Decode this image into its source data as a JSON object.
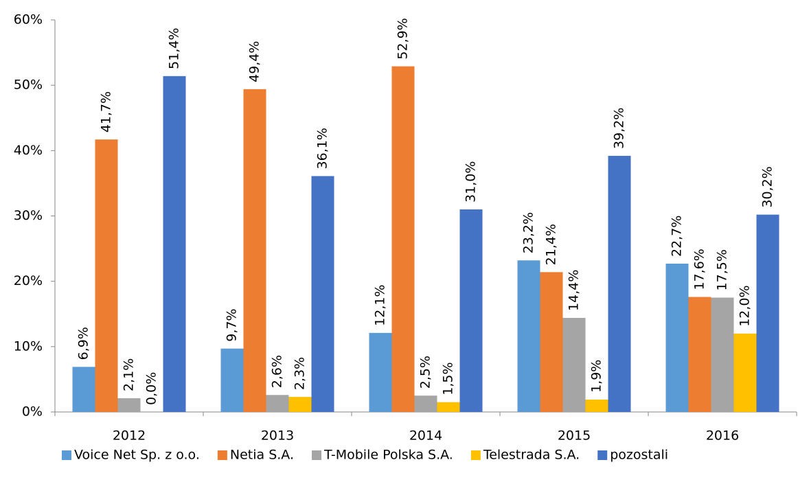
{
  "chart_data": {
    "type": "bar",
    "categories": [
      "2012",
      "2013",
      "2014",
      "2015",
      "2016"
    ],
    "series": [
      {
        "name": "Voice Net Sp. z o.o.",
        "color": "#5b9bd5",
        "values": [
          6.9,
          9.7,
          12.1,
          23.2,
          22.7
        ],
        "value_labels": [
          "6,9%",
          "9,7%",
          "12,1%",
          "23,2%",
          "22,7%"
        ]
      },
      {
        "name": "Netia S.A.",
        "color": "#ed7d31",
        "values": [
          41.7,
          49.4,
          52.9,
          21.4,
          17.6
        ],
        "value_labels": [
          "41,7%",
          "49,4%",
          "52,9%",
          "21,4%",
          "17,6%"
        ]
      },
      {
        "name": "T-Mobile Polska S.A.",
        "color": "#a5a5a5",
        "values": [
          2.1,
          2.6,
          2.5,
          14.4,
          17.5
        ],
        "value_labels": [
          "2,1%",
          "2,6%",
          "2,5%",
          "14,4%",
          "17,5%"
        ]
      },
      {
        "name": "Telestrada S.A.",
        "color": "#ffc000",
        "values": [
          0.0,
          2.3,
          1.5,
          1.9,
          12.0
        ],
        "value_labels": [
          "0,0%",
          "2,3%",
          "1,5%",
          "1,9%",
          "12,0%"
        ]
      },
      {
        "name": "pozostali",
        "color": "#4472c4",
        "values": [
          51.4,
          36.1,
          31.0,
          39.2,
          30.2
        ],
        "value_labels": [
          "51,4%",
          "36,1%",
          "31,0%",
          "39,2%",
          "30,2%"
        ]
      }
    ],
    "ylim": [
      0,
      60
    ],
    "yticks": [
      {
        "value": 0,
        "label": "0%"
      },
      {
        "value": 10,
        "label": "10%"
      },
      {
        "value": 20,
        "label": "20%"
      },
      {
        "value": 30,
        "label": "30%"
      },
      {
        "value": 40,
        "label": "40%"
      },
      {
        "value": 50,
        "label": "50%"
      },
      {
        "value": 60,
        "label": "60%"
      }
    ],
    "legend": "bottom"
  }
}
